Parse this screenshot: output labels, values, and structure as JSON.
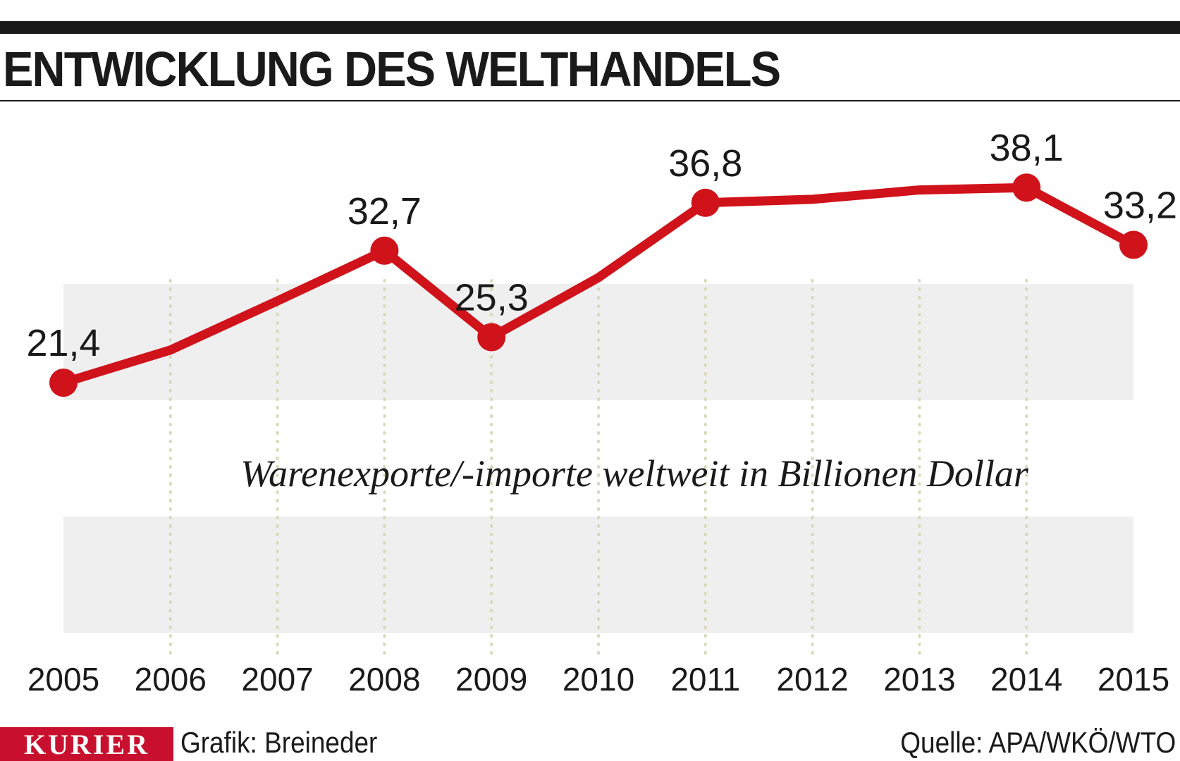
{
  "header": {
    "title": "ENTWICKLUNG DES WELTHANDELS"
  },
  "chart_data": {
    "type": "line",
    "x": [
      "2005",
      "2006",
      "2007",
      "2008",
      "2009",
      "2010",
      "2011",
      "2012",
      "2013",
      "2014",
      "2015"
    ],
    "series": [
      {
        "values": [
          21.4,
          24.2,
          28.4,
          32.7,
          25.3,
          30.4,
          36.8,
          37.1,
          37.9,
          38.1,
          33.2
        ]
      }
    ],
    "data_labels": [
      {
        "x": "2005",
        "label": "21,4"
      },
      {
        "x": "2008",
        "label": "32,7"
      },
      {
        "x": "2009",
        "label": "25,3"
      },
      {
        "x": "2011",
        "label": "36,8"
      },
      {
        "x": "2014",
        "label": "38,1"
      },
      {
        "x": "2015",
        "label": "33,2"
      }
    ],
    "annotation": "Warenexporte/-importe weltweit in Billionen Dollar",
    "ylim": [
      0,
      43
    ],
    "grid": "vertical dotted",
    "colors": {
      "line": "#d0121b",
      "band": "#f0eff0",
      "grid": "#d9d8b8"
    }
  },
  "footer": {
    "logo": "KURIER",
    "credit": "Grafik: Breineder",
    "source": "Quelle: APA/WKÖ/WTO"
  }
}
